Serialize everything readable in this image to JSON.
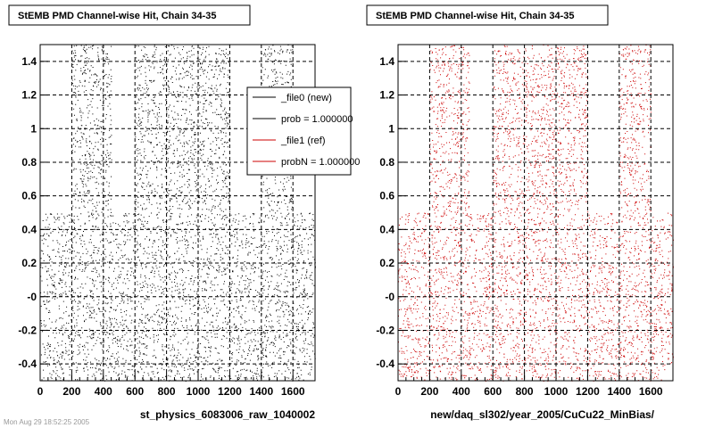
{
  "colors": {
    "new": "#000000",
    "ref": "#cc0000",
    "grid": "#000000",
    "frame": "#000000"
  },
  "footer": "Mon Aug 29 18:52:25 2005",
  "chart_data": [
    {
      "type": "scatter",
      "title": "StEMB PMD Channel-wise Hit, Chain 34-35",
      "xlabel": "st_physics_6083006_raw_1040002",
      "ylabel": "",
      "xlim": [
        0,
        1740
      ],
      "ylim": [
        -0.5,
        1.5
      ],
      "xticks": [
        0,
        200,
        400,
        600,
        800,
        1000,
        1200,
        1400,
        1600
      ],
      "yticks": [
        -0.4,
        -0.2,
        0,
        0.2,
        0.4,
        0.6,
        0.8,
        1,
        1.2,
        1.4
      ],
      "ytick_labels": [
        "-0.4",
        "-0.2",
        "-0",
        "0.2",
        "0.4",
        "0.6",
        "0.8",
        "1",
        "1.2",
        "1.4"
      ],
      "grid": true,
      "series": [
        {
          "name": "_file0 (new)",
          "color": "#000000"
        }
      ],
      "bands": [
        {
          "x": [
            0,
            200
          ],
          "y": [
            -0.5,
            0.5
          ]
        },
        {
          "x": [
            200,
            320
          ],
          "y": [
            -0.5,
            1.5
          ]
        },
        {
          "x": [
            320,
            450
          ],
          "y": [
            -0.5,
            1.5
          ]
        },
        {
          "x": [
            450,
            600
          ],
          "y": [
            -0.5,
            0.5
          ]
        },
        {
          "x": [
            600,
            800
          ],
          "y": [
            -0.5,
            1.5
          ]
        },
        {
          "x": [
            800,
            1200
          ],
          "y": [
            -0.5,
            1.5
          ]
        },
        {
          "x": [
            1200,
            1400
          ],
          "y": [
            -0.5,
            0.5
          ]
        },
        {
          "x": [
            1400,
            1600
          ],
          "y": [
            -0.5,
            1.5
          ]
        },
        {
          "x": [
            1600,
            1740
          ],
          "y": [
            -0.5,
            0.5
          ]
        }
      ],
      "legend": {
        "position": "top-right",
        "entries": [
          {
            "label": "_file0 (new)",
            "color": "#000000"
          },
          {
            "label": "prob = 1.000000",
            "color": "#000000"
          },
          {
            "label": "_file1 (ref)",
            "color": "#cc0000"
          },
          {
            "label": "probN = 1.000000",
            "color": "#cc0000"
          }
        ]
      }
    },
    {
      "type": "scatter",
      "title": "StEMB PMD Channel-wise Hit, Chain 34-35",
      "xlabel": "new/daq_sl302/year_2005/CuCu22_MinBias/",
      "ylabel": "",
      "xlim": [
        0,
        1740
      ],
      "ylim": [
        -0.5,
        1.5
      ],
      "xticks": [
        0,
        200,
        400,
        600,
        800,
        1000,
        1200,
        1400,
        1600
      ],
      "yticks": [
        -0.4,
        -0.2,
        0,
        0.2,
        0.4,
        0.6,
        0.8,
        1,
        1.2,
        1.4
      ],
      "ytick_labels": [
        "-0.4",
        "-0.2",
        "-0",
        "0.2",
        "0.4",
        "0.6",
        "0.8",
        "1",
        "1.2",
        "1.4"
      ],
      "grid": true,
      "series": [
        {
          "name": "_file1 (ref)",
          "color": "#cc0000"
        }
      ],
      "bands": [
        {
          "x": [
            0,
            200
          ],
          "y": [
            -0.5,
            0.5
          ]
        },
        {
          "x": [
            200,
            320
          ],
          "y": [
            -0.5,
            1.5
          ]
        },
        {
          "x": [
            320,
            450
          ],
          "y": [
            -0.5,
            1.5
          ]
        },
        {
          "x": [
            450,
            600
          ],
          "y": [
            -0.5,
            0.5
          ]
        },
        {
          "x": [
            600,
            800
          ],
          "y": [
            -0.5,
            1.5
          ]
        },
        {
          "x": [
            800,
            1200
          ],
          "y": [
            -0.5,
            1.5
          ]
        },
        {
          "x": [
            1200,
            1400
          ],
          "y": [
            -0.5,
            0.5
          ]
        },
        {
          "x": [
            1400,
            1600
          ],
          "y": [
            -0.5,
            1.5
          ]
        },
        {
          "x": [
            1600,
            1740
          ],
          "y": [
            -0.5,
            0.5
          ]
        }
      ]
    }
  ]
}
